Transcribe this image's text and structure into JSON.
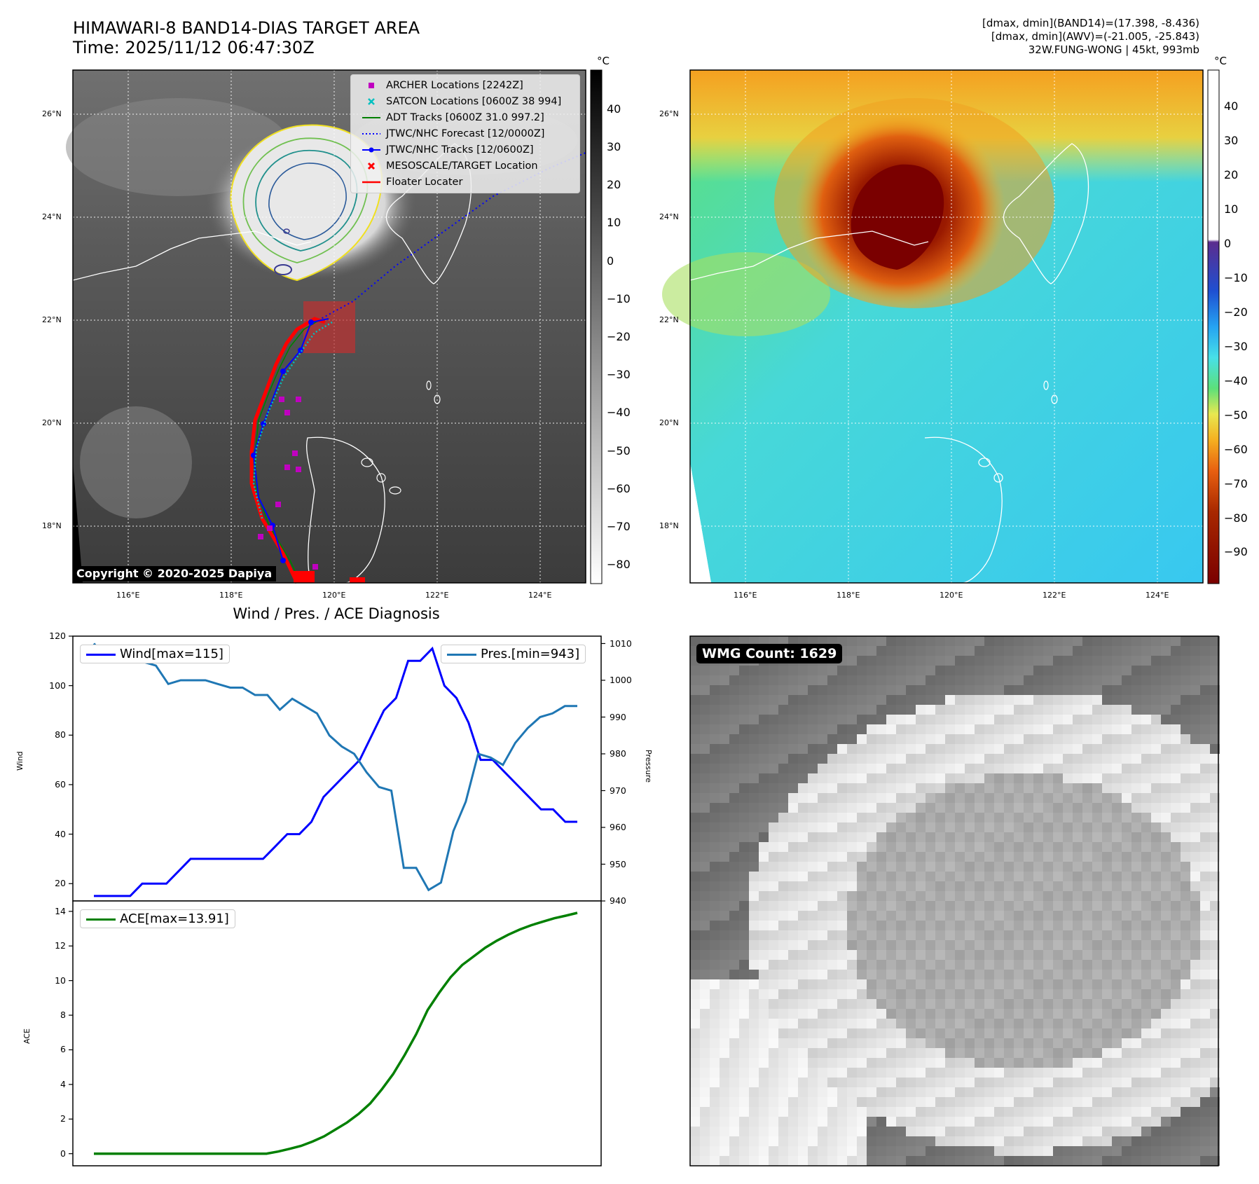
{
  "title": {
    "line1": "HIMAWARI-8 BAND14-DIAS TARGET AREA",
    "line2": "Time: 2025/11/12 06:47:30Z"
  },
  "info": {
    "line1": "[dmax, dmin](BAND14)=(17.398, -8.436)",
    "line2": "[dmax, dmin](AWV)=(-21.005, -25.843)",
    "line3": "32W.FUNG-WONG | 45kt, 993mb"
  },
  "unit": "°C",
  "map": {
    "lat_labels": [
      "26°N",
      "24°N",
      "22°N",
      "20°N",
      "18°N"
    ],
    "lon_labels": [
      "116°E",
      "118°E",
      "120°E",
      "122°E",
      "124°E"
    ],
    "copyright": "Copyright © 2020-2025 Dapiya"
  },
  "colorbar_gray": {
    "ticks": [
      "40",
      "30",
      "20",
      "10",
      "0",
      "−10",
      "−20",
      "−30",
      "−40",
      "−50",
      "−60",
      "−70",
      "−80"
    ]
  },
  "colorbar_color": {
    "ticks": [
      "40",
      "30",
      "20",
      "10",
      "0",
      "−10",
      "−20",
      "−30",
      "−40",
      "−50",
      "−60",
      "−70",
      "−80",
      "−90"
    ],
    "stops": [
      "#ffffff",
      "#ffffff",
      "#5b2d8e",
      "#1f4fd1",
      "#25a3f2",
      "#47e0e8",
      "#5ce07a",
      "#e8e850",
      "#f5b020",
      "#e86010",
      "#a82800",
      "#7a0000"
    ]
  },
  "legend": {
    "items": [
      {
        "label": "ARCHER Locations [2242Z]",
        "color": "#c000c0",
        "kind": "square"
      },
      {
        "label": "SATCON Locations [0600Z 38 994]",
        "color": "#00c0c0",
        "kind": "x"
      },
      {
        "label": "ADT Tracks [0600Z 31.0 997.2]",
        "color": "#008000",
        "kind": "line"
      },
      {
        "label": "JTWC/NHC Forecast [12/0000Z]",
        "color": "#0000ff",
        "kind": "dotted"
      },
      {
        "label": "JTWC/NHC Tracks [12/0600Z]",
        "color": "#0000ff",
        "kind": "line-dot"
      },
      {
        "label": "MESOSCALE/TARGET Location",
        "color": "#ff0000",
        "kind": "x"
      },
      {
        "label": "Floater Locater",
        "color": "#ff0000",
        "kind": "line"
      }
    ]
  },
  "diagnosis": {
    "title": "Wind / Pres. / ACE Diagnosis",
    "wind_label": "Wind",
    "pressure_label": "Pressure",
    "ace_label": "ACE",
    "wind_legend": "Wind[max=115]",
    "pressure_legend": "Pres.[min=943]",
    "ace_legend": "ACE[max=13.91]"
  },
  "wmg": {
    "label": "WMG Count: 1629"
  },
  "chart_data": [
    {
      "type": "line",
      "title": "Wind / Pres. / ACE Diagnosis",
      "ylabel": "Wind",
      "ylim": [
        13,
        120
      ],
      "yticks": [
        "20",
        "40",
        "60",
        "80",
        "100",
        "120"
      ],
      "series": [
        {
          "name": "Wind[max=115]",
          "color": "#0000ff",
          "values": [
            15,
            15,
            15,
            15,
            20,
            20,
            20,
            25,
            30,
            30,
            30,
            30,
            30,
            30,
            30,
            35,
            40,
            40,
            45,
            55,
            60,
            65,
            70,
            80,
            90,
            95,
            110,
            110,
            115,
            100,
            95,
            85,
            70,
            70,
            65,
            60,
            55,
            50,
            50,
            45,
            45
          ]
        }
      ]
    },
    {
      "type": "line",
      "ylabel": "Pressure",
      "ylim": [
        940,
        1012
      ],
      "yticks": [
        "940",
        "950",
        "960",
        "970",
        "980",
        "990",
        "1000",
        "1010"
      ],
      "series": [
        {
          "name": "Pres.[min=943]",
          "color": "#1f77b4",
          "values": [
            1010,
            1006,
            1006,
            1006,
            1005,
            1004,
            999,
            1000,
            1000,
            1000,
            999,
            998,
            998,
            996,
            996,
            992,
            995,
            993,
            991,
            985,
            982,
            980,
            975,
            971,
            970,
            949,
            949,
            943,
            945,
            959,
            967,
            980,
            979,
            977,
            983,
            987,
            990,
            991,
            993,
            993
          ]
        }
      ]
    },
    {
      "type": "line",
      "ylabel": "ACE",
      "ylim": [
        -0.7,
        14.6
      ],
      "yticks": [
        "0",
        "2",
        "4",
        "6",
        "8",
        "10",
        "12",
        "14"
      ],
      "series": [
        {
          "name": "ACE[max=13.91]",
          "color": "#008000",
          "values": [
            0,
            0,
            0,
            0,
            0,
            0,
            0,
            0,
            0,
            0,
            0,
            0,
            0,
            0,
            0,
            0,
            0.12,
            0.28,
            0.45,
            0.7,
            1.0,
            1.4,
            1.8,
            2.3,
            2.9,
            3.7,
            4.6,
            5.7,
            6.9,
            8.3,
            9.3,
            10.2,
            10.9,
            11.4,
            11.9,
            12.3,
            12.65,
            12.95,
            13.2,
            13.4,
            13.6,
            13.75,
            13.91
          ]
        }
      ]
    }
  ]
}
